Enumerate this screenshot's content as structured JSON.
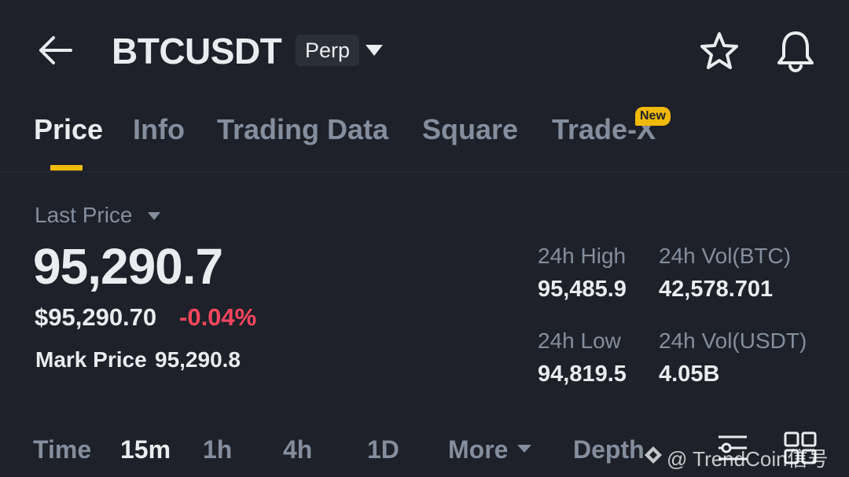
{
  "header": {
    "symbol": "BTCUSDT",
    "contract_type": "Perp",
    "icons": [
      "back-arrow-icon",
      "chevron-down-icon",
      "star-icon",
      "bell-icon"
    ]
  },
  "tabs": [
    {
      "label": "Price",
      "active": true
    },
    {
      "label": "Info",
      "active": false
    },
    {
      "label": "Trading Data",
      "active": false
    },
    {
      "label": "Square",
      "active": false
    },
    {
      "label": "Trade-X",
      "active": false,
      "badge": "New"
    }
  ],
  "price": {
    "price_type_label": "Last Price",
    "last_price": "95,290.7",
    "usd_price": "$95,290.70",
    "change_percent": "-0.04%",
    "mark_price_label": "Mark Price",
    "mark_price": "95,290.8"
  },
  "stats": {
    "high_label": "24h High",
    "high_value": "95,485.9",
    "vol_btc_label": "24h Vol(BTC)",
    "vol_btc_value": "42,578.701",
    "low_label": "24h Low",
    "low_value": "94,819.5",
    "vol_usdt_label": "24h Vol(USDT)",
    "vol_usdt_value": "4.05B"
  },
  "intervals": {
    "items": [
      {
        "label": "Time",
        "active": false
      },
      {
        "label": "15m",
        "active": true
      },
      {
        "label": "1h",
        "active": false
      },
      {
        "label": "4h",
        "active": false
      },
      {
        "label": "1D",
        "active": false
      }
    ],
    "more_label": "More",
    "depth_label": "Depth"
  },
  "watermark": "@ TrendCoin信号",
  "colors": {
    "background": "#1e2129",
    "accent": "#f0b90b",
    "negative": "#f6465d",
    "text_primary": "#eaecef",
    "text_secondary": "#848e9c"
  }
}
